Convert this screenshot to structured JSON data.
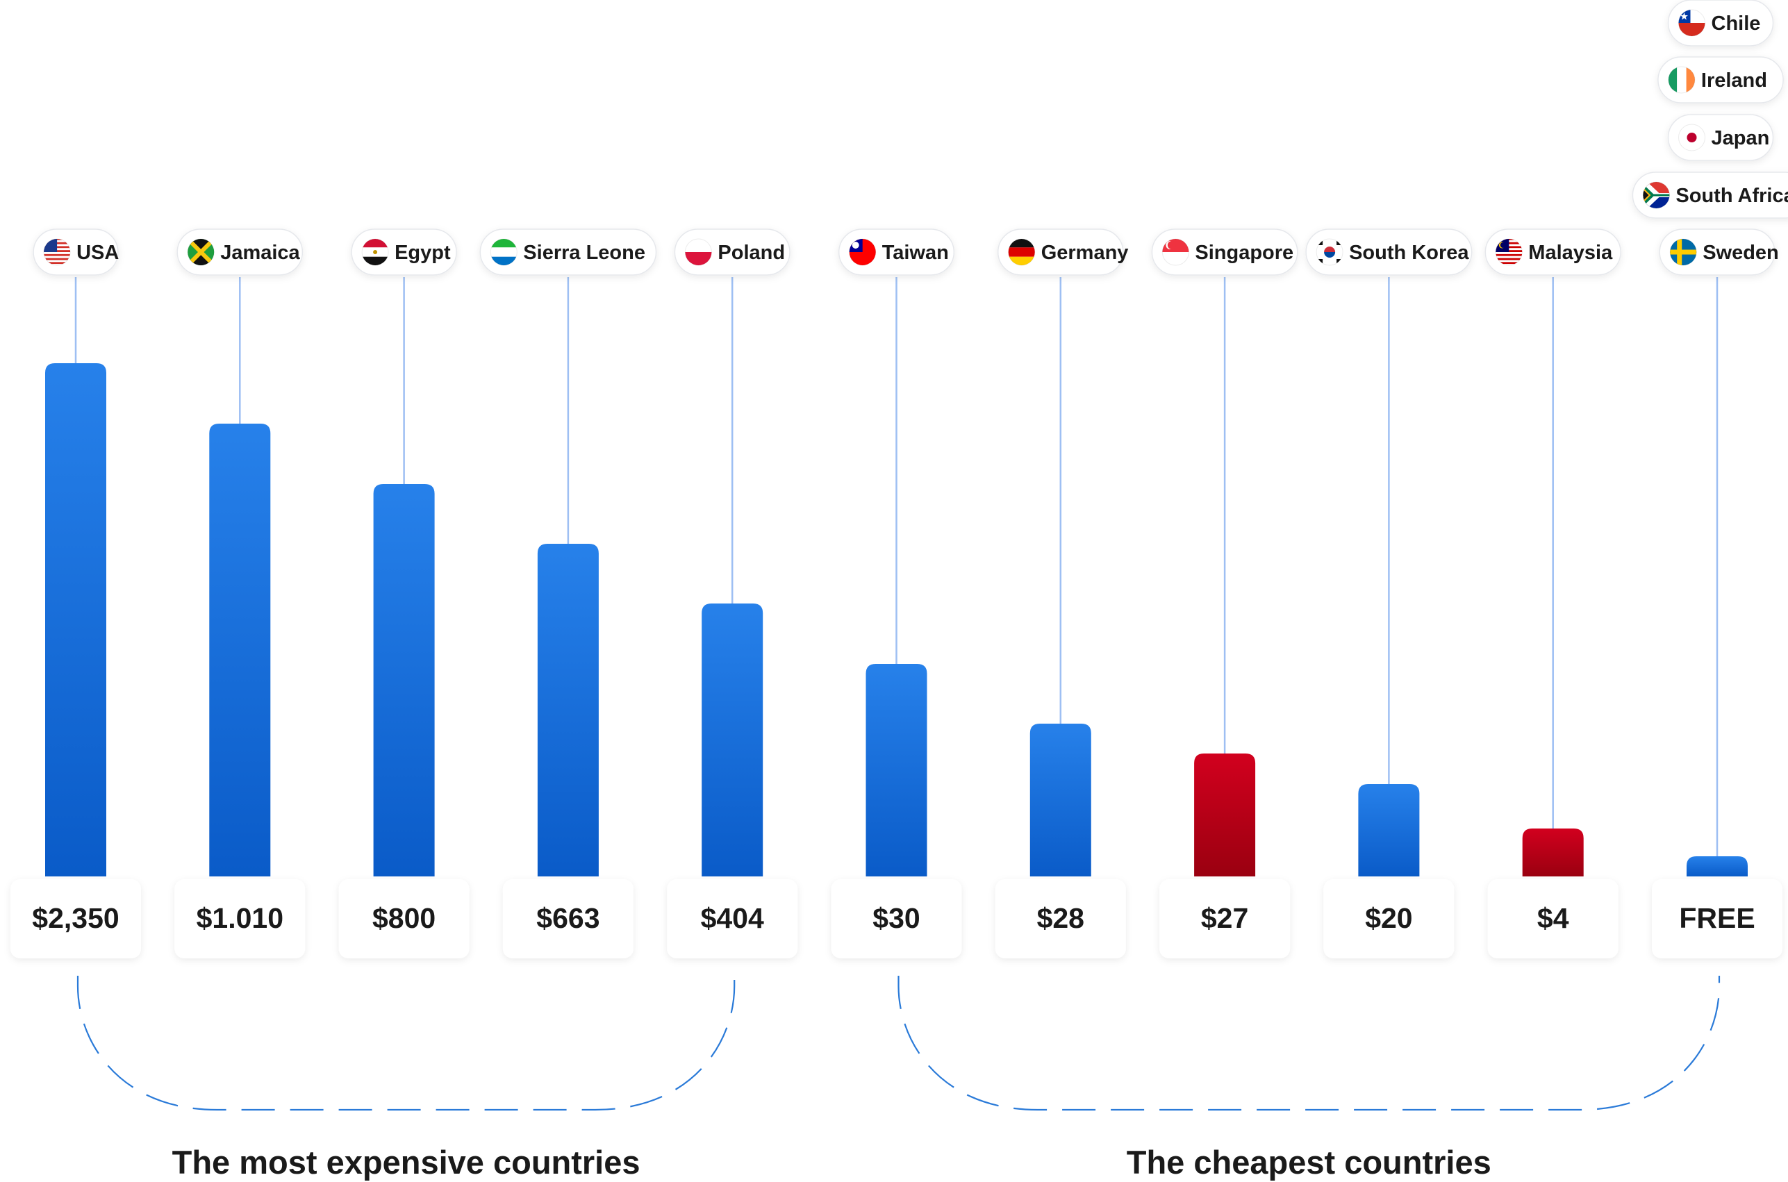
{
  "chart_data": {
    "type": "bar",
    "categories": [
      "USA",
      "Jamaica",
      "Egypt",
      "Sierra Leone",
      "Poland",
      "Taiwan",
      "Germany",
      "Singapore",
      "South Korea",
      "Malaysia",
      "Sweden"
    ],
    "extra_labels_last": [
      "Chile",
      "Ireland",
      "Japan",
      "South Africa"
    ],
    "value_labels": [
      "$2,350",
      "$1.010",
      "$800",
      "$663",
      "$404",
      "$30",
      "$28",
      "$27",
      "$20",
      "$4",
      "FREE"
    ],
    "values": [
      2350,
      1010,
      800,
      663,
      404,
      30,
      28,
      27,
      20,
      4,
      0
    ],
    "highlight": [
      false,
      false,
      false,
      false,
      false,
      false,
      false,
      true,
      false,
      true,
      false
    ],
    "flags": [
      "usa-flag-icon",
      "jamaica-flag-icon",
      "egypt-flag-icon",
      "sierra-leone-flag-icon",
      "poland-flag-icon",
      "taiwan-flag-icon",
      "germany-flag-icon",
      "singapore-flag-icon",
      "south-korea-flag-icon",
      "malaysia-flag-icon",
      "sweden-flag-icon"
    ],
    "extra_flags": [
      "chile-flag-icon",
      "ireland-flag-icon",
      "japan-flag-icon",
      "south-africa-flag-icon"
    ],
    "groups": [
      {
        "label": "The most expensive countries",
        "from": 0,
        "to": 4
      },
      {
        "label": "The cheapest countries",
        "from": 5,
        "to": 10
      }
    ],
    "colors": {
      "bar": "#2781ea",
      "bar_dark": "#0a5bc8",
      "highlight": "#d2001e",
      "highlight_dark": "#9a0010",
      "connector": "#9ebff3",
      "brace": "#2a7ad8",
      "text": "#1a1a1a"
    }
  }
}
